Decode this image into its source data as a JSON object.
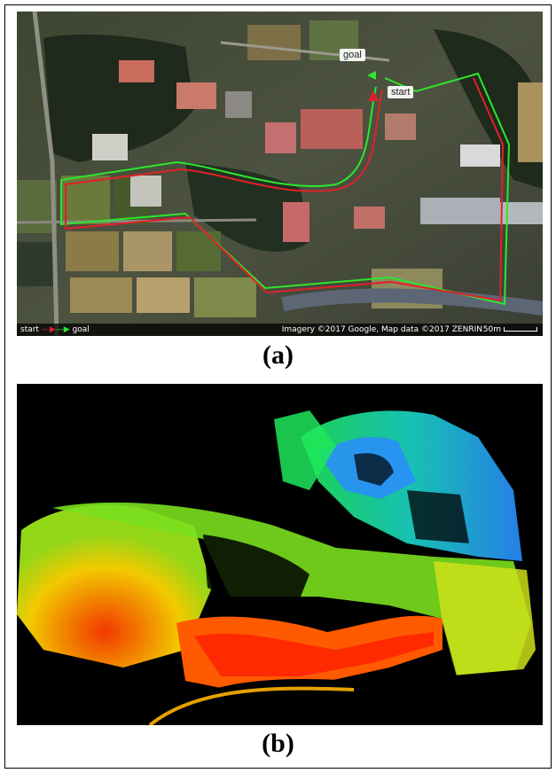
{
  "panel_a": {
    "caption": "(a)",
    "labels": {
      "goal": "goal",
      "start": "start"
    },
    "legend": {
      "start": "start",
      "goal": "goal"
    },
    "attribution": "Imagery ©2017 Google, Map data ©2017 ZENRIN",
    "scale": "50m",
    "route_colors": {
      "outbound": "#e0202a",
      "return": "#2ee62e"
    }
  },
  "panel_b": {
    "caption": "(b)",
    "colormap": [
      "#ff3b00",
      "#ff8c00",
      "#ffd400",
      "#9be21a",
      "#1ee85a",
      "#1ad6c8",
      "#2a8cff"
    ]
  }
}
